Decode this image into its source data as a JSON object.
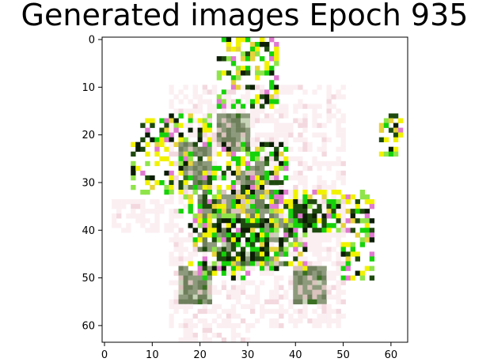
{
  "title": "Generated images Epoch 935",
  "image": {
    "size": [
      64,
      64
    ],
    "palette": {
      "w": "#ffffff",
      "p": "#fbeff2",
      "q": "#f3d9df",
      "t": "#d9c3bc",
      "g": "#8d9a7c",
      "G": "#6e7f5c",
      "d": "#3a6f22",
      "D": "#1f4a0f",
      "k": "#0b1e05",
      "L": "#16d20a",
      "l": "#8fe44a",
      "y": "#f1f200",
      "Y": "#e6d23a",
      "m": "#e07ad0",
      "s": "#c7d4b8"
    }
  },
  "axes": {
    "x_ticks": [
      "0",
      "10",
      "20",
      "30",
      "40",
      "50",
      "60"
    ],
    "y_ticks": [
      "0",
      "10",
      "20",
      "30",
      "40",
      "50",
      "60"
    ]
  }
}
